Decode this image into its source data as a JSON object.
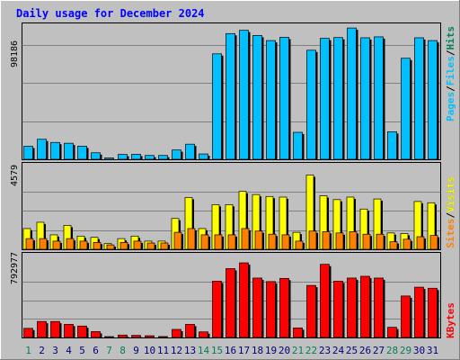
{
  "chart_data": [
    {
      "type": "bar",
      "title": "Daily usage for December 2024",
      "categories": [
        "1",
        "2",
        "3",
        "4",
        "5",
        "6",
        "7",
        "8",
        "9",
        "10",
        "11",
        "12",
        "13",
        "14",
        "15",
        "16",
        "17",
        "18",
        "19",
        "20",
        "21",
        "22",
        "23",
        "24",
        "25",
        "26",
        "27",
        "28",
        "29",
        "30",
        "31"
      ],
      "weekend_days": [
        "1",
        "7",
        "8",
        "14",
        "15",
        "21",
        "22",
        "28",
        "29"
      ],
      "ymax_label": "98186",
      "ymax": 98186,
      "axis_label_parts": [
        "Pages",
        "Files",
        "Hits"
      ],
      "series": [
        {
          "name": "Hits",
          "color": "#00805c",
          "values": [
            0,
            0,
            0,
            0,
            0,
            0,
            0,
            0,
            0,
            0,
            0,
            0,
            0,
            0,
            0,
            0,
            0,
            0,
            0,
            0,
            0,
            0,
            0,
            0,
            0,
            0,
            0,
            0,
            0,
            0,
            0
          ]
        },
        {
          "name": "Files",
          "color": "#00c0ff",
          "values": [
            11200,
            17200,
            14500,
            13800,
            11300,
            5600,
            1200,
            4200,
            4300,
            3300,
            3300,
            8000,
            13000,
            4600,
            90600,
            108000,
            110800,
            106400,
            102000,
            104800,
            23200,
            93700,
            103900,
            104600,
            112800,
            104400,
            105200,
            23700,
            86800,
            104400,
            102000
          ]
        },
        {
          "name": "Pages",
          "color": "#00c0ff",
          "values": [
            0,
            0,
            0,
            0,
            0,
            0,
            0,
            0,
            0,
            0,
            0,
            0,
            0,
            0,
            0,
            0,
            0,
            0,
            0,
            0,
            0,
            0,
            0,
            0,
            0,
            0,
            0,
            0,
            0,
            0,
            0
          ]
        }
      ]
    },
    {
      "type": "bar",
      "ymax_label": "4579",
      "ymax": 4579,
      "axis_label_parts": [
        "Sites",
        "Visits"
      ],
      "series": [
        {
          "name": "Visits",
          "color": "#ffff00",
          "values": [
            1650,
            2150,
            1150,
            1900,
            1050,
            950,
            450,
            850,
            1050,
            650,
            650,
            2450,
            4120,
            1650,
            3550,
            3550,
            4600,
            4350,
            4200,
            4150,
            1350,
            5900,
            4250,
            3950,
            4150,
            3200,
            4000,
            1300,
            1250,
            3800,
            3700
          ]
        },
        {
          "name": "Sites",
          "color": "#ff8000",
          "values": [
            850,
            850,
            650,
            850,
            650,
            550,
            350,
            550,
            650,
            500,
            500,
            1350,
            1650,
            1150,
            1150,
            1150,
            1650,
            1450,
            1200,
            1150,
            650,
            1450,
            1400,
            1300,
            1400,
            1200,
            1200,
            600,
            800,
            1000,
            1100
          ]
        }
      ]
    },
    {
      "type": "bar",
      "ymax_label": "792977",
      "ymax": 792977,
      "axis_label_parts": [
        "KBytes"
      ],
      "series": [
        {
          "name": "KBytes",
          "color": "#ff0000",
          "values": [
            130000,
            228000,
            228000,
            187000,
            163000,
            84000,
            10000,
            35000,
            30000,
            25000,
            14000,
            115000,
            187000,
            80000,
            800000,
            979000,
            1061000,
            845000,
            795000,
            840000,
            136000,
            740000,
            1040000,
            800000,
            845000,
            870000,
            845000,
            145000,
            590000,
            715000,
            700000
          ]
        }
      ]
    }
  ],
  "colors": {
    "background": "#c0c0c0",
    "title": "#0000ff",
    "weekday": "#000080",
    "weekend": "#00805c"
  }
}
